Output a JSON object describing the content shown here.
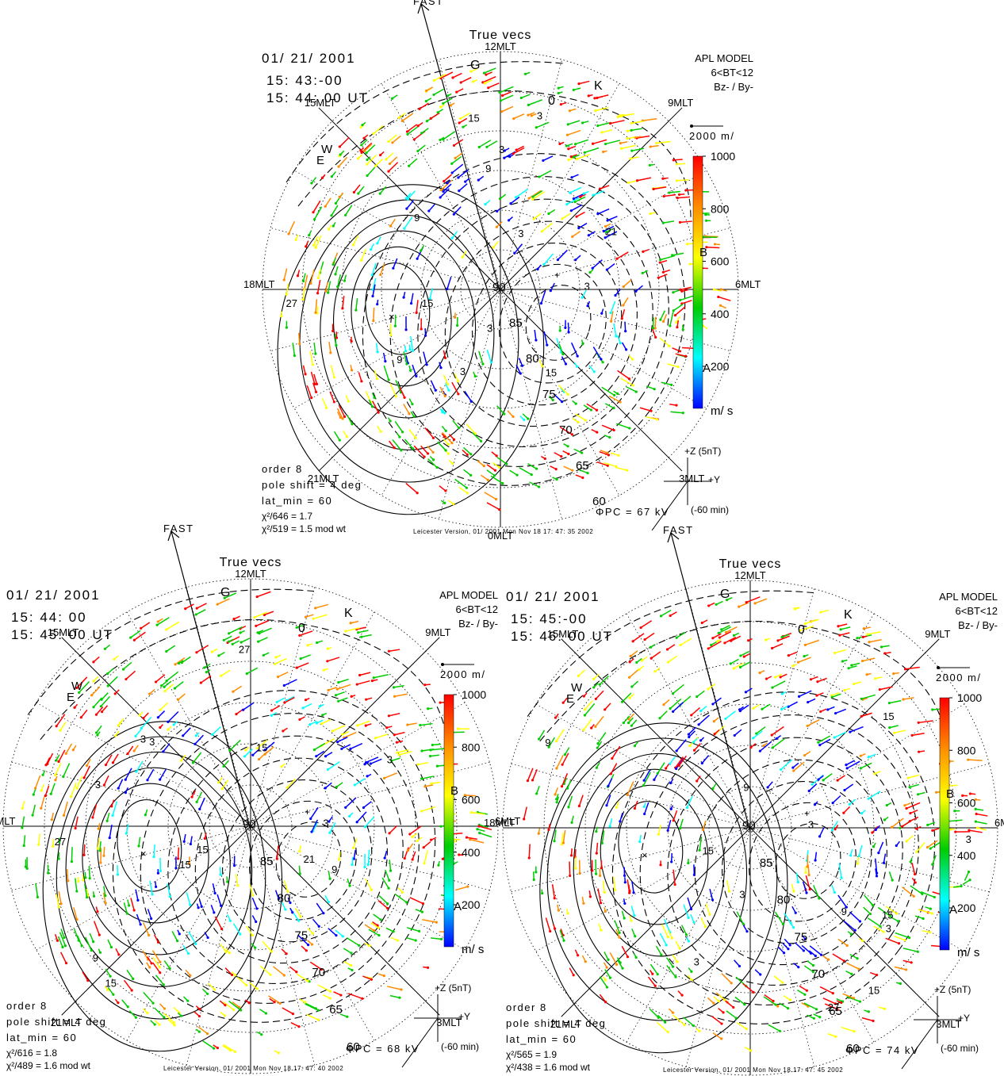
{
  "panels": [
    {
      "date": "01/ 21/ 2001",
      "time_start": "15: 43:-00",
      "time_end": "15: 44: 00 UT",
      "model_lines": [
        "APL MODEL",
        "6<BT<12",
        "Bz- / By-"
      ],
      "title": "True vecs",
      "fast_label": "FAST",
      "order": "order 8",
      "pole_shift": "pole shift = 4 deg",
      "lat_min": "lat_min = 60",
      "chi1": "χ²/646 = 1.7",
      "chi2": "χ²/519 = 1.5  mod wt",
      "phi_pc": "ΦPC = 67 kV",
      "footer": "Leicester Version, 01/ 2001  Mon Nov 18 17: 47: 35 2002",
      "scale_label": "2000 m/",
      "clock_z": "+Z (5nT)",
      "clock_y": "+Y",
      "clock_time": "(-60 min)"
    },
    {
      "date": "01/ 21/ 2001",
      "time_start": "15: 44: 00",
      "time_end": "15: 45: 00 UT",
      "model_lines": [
        "APL MODEL",
        "6<BT<12",
        "Bz- / By-"
      ],
      "title": "True vecs",
      "fast_label": "FAST",
      "order": "order 8",
      "pole_shift": "pole shift = 4 deg",
      "lat_min": "lat_min = 60",
      "chi1": "χ²/616 = 1.8",
      "chi2": "χ²/489 = 1.6  mod wt",
      "phi_pc": "ΦPC = 68 kV",
      "footer": "Leicester Version, 01/ 2001  Mon Nov 18 17: 47: 40 2002",
      "scale_label": "2000 m/",
      "clock_z": "+Z (5nT)",
      "clock_y": "+Y",
      "clock_time": "(-60 min)"
    },
    {
      "date": "01/ 21/ 2001",
      "time_start": "15: 45:-00",
      "time_end": "15: 46: 00 UT",
      "model_lines": [
        "APL MODEL",
        "6<BT<12",
        "Bz- / By-"
      ],
      "title": "True vecs",
      "fast_label": "FAST",
      "order": "order 8",
      "pole_shift": "pole shift = 4 deg",
      "lat_min": "lat_min = 60",
      "chi1": "χ²/565 = 1.9",
      "chi2": "χ²/438 = 1.6  mod wt",
      "phi_pc": "ΦPC = 74 kV",
      "footer": "Leicester Version, 01/ 2001  Mon Nov 18 17: 47: 45 2002",
      "scale_label": "2000 m/",
      "clock_z": "+Z (5nT)",
      "clock_y": "+Y",
      "clock_time": "(-60 min)"
    }
  ],
  "mlt_labels": {
    "noon": "12MLT",
    "dawn": "6MLT",
    "dusk": "18MLT",
    "midnight": "0MLT",
    "m15": "15MLT",
    "m9": "9MLT",
    "m21": "21MLT",
    "m3": "3MLT"
  },
  "latitudes": [
    "90",
    "85",
    "80",
    "75",
    "70",
    "65",
    "60"
  ],
  "colorbar": {
    "ticks": [
      "1000",
      "800",
      "600",
      "400",
      "200"
    ],
    "unit": "m/ s",
    "colors": [
      "#ff0000",
      "#ff8c00",
      "#ffff00",
      "#00cc00",
      "#00ffff",
      "#0000ff"
    ]
  },
  "markers": {
    "G": "G",
    "K": "K",
    "W": "W",
    "E": "E",
    "zero": "0",
    "A": "A",
    "B": "B"
  },
  "contour_values": {
    "p1": [
      "3",
      "3",
      "3",
      "3",
      "9",
      "9",
      "21",
      "9",
      "3",
      "15",
      "15",
      "27",
      "15",
      "3"
    ],
    "p2": [
      "3",
      "3",
      "3",
      "9",
      "15",
      "15",
      "27",
      "15",
      "27",
      "15",
      "21",
      "3",
      "9",
      "3"
    ],
    "p3": [
      "3",
      "15",
      "3",
      "15",
      "9",
      "3",
      "9",
      "15",
      "27",
      "15",
      "3",
      "9",
      "3"
    ]
  }
}
